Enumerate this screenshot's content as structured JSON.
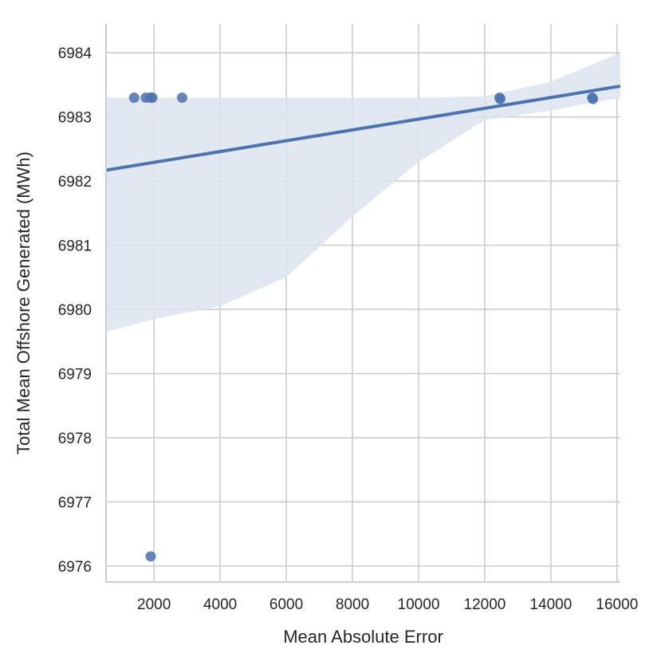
{
  "chart_data": {
    "type": "scatter",
    "title": "",
    "xlabel": "Mean Absolute Error",
    "ylabel": "Total Mean Offshore Generated (MWh)",
    "xlim": [
      550,
      16100
    ],
    "ylim": [
      6975.75,
      6984.45
    ],
    "x_ticks": [
      2000,
      4000,
      6000,
      8000,
      10000,
      12000,
      14000,
      16000
    ],
    "y_ticks": [
      6976,
      6977,
      6978,
      6979,
      6980,
      6981,
      6982,
      6983,
      6984
    ],
    "grid": true,
    "points": [
      {
        "x": 1400,
        "y": 6983.3
      },
      {
        "x": 1750,
        "y": 6983.3
      },
      {
        "x": 1900,
        "y": 6983.3
      },
      {
        "x": 1950,
        "y": 6983.3
      },
      {
        "x": 2850,
        "y": 6983.3
      },
      {
        "x": 12450,
        "y": 6983.3
      },
      {
        "x": 12470,
        "y": 6983.28
      },
      {
        "x": 15250,
        "y": 6983.3
      },
      {
        "x": 15270,
        "y": 6983.28
      },
      {
        "x": 1900,
        "y": 6976.15
      }
    ],
    "regression_line": {
      "x": [
        550,
        16100
      ],
      "y": [
        6982.17,
        6983.48
      ]
    },
    "confidence_band": {
      "x": [
        550,
        2000,
        4000,
        6000,
        8000,
        10000,
        12000,
        14000,
        16100
      ],
      "upper": [
        6983.3,
        6983.3,
        6983.3,
        6983.3,
        6983.3,
        6983.3,
        6983.32,
        6983.55,
        6984.0
      ],
      "lower": [
        6979.65,
        6979.85,
        6980.05,
        6980.5,
        6981.45,
        6982.3,
        6982.95,
        6983.1,
        6983.3
      ]
    },
    "colors": {
      "points": "#4c72b0",
      "line": "#4c72b0",
      "band": "#dde4f0",
      "grid": "#cccccc"
    }
  }
}
